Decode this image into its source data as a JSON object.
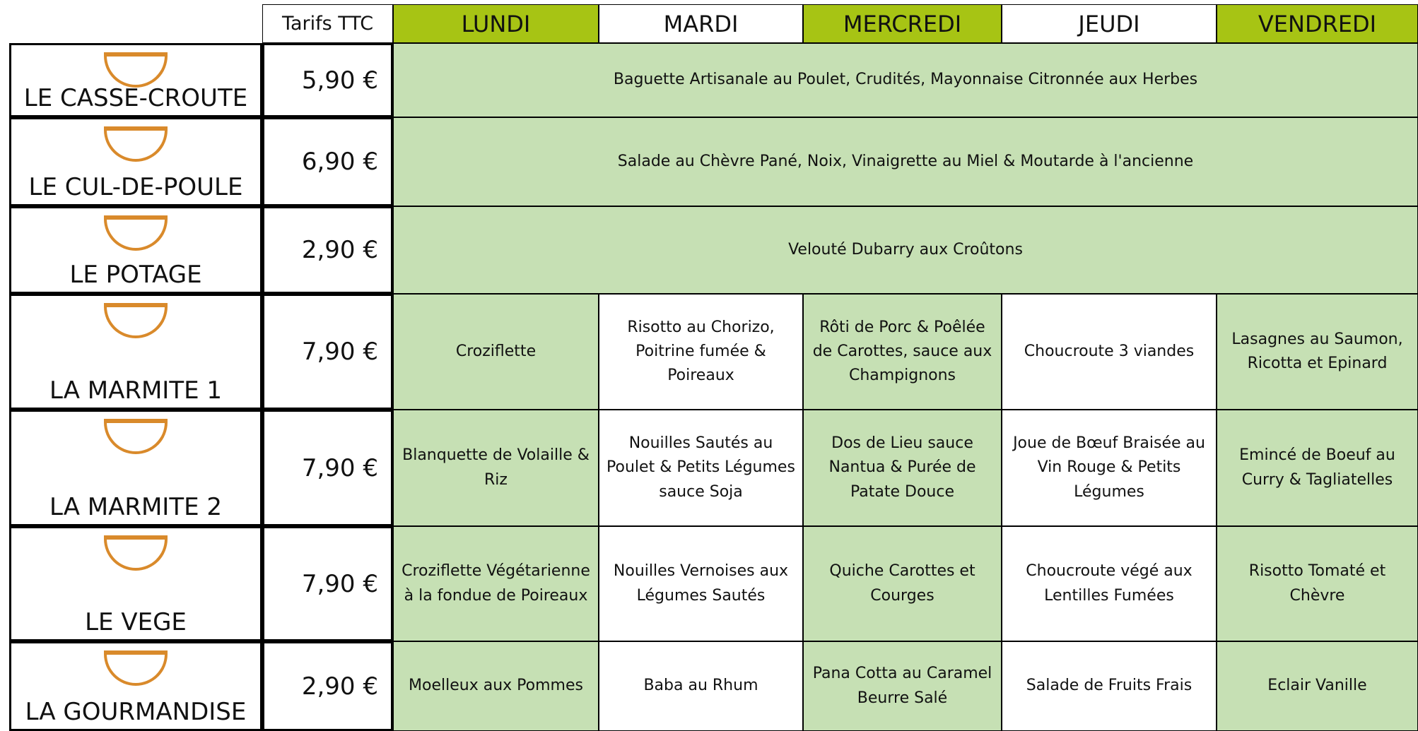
{
  "header": {
    "price_label": "Tarifs TTC",
    "days": [
      "LUNDI",
      "MARDI",
      "MERCREDI",
      "JEUDI",
      "VENDREDI"
    ]
  },
  "rows": [
    {
      "name": "LE CASSE-CROUTE",
      "price": "5,90 €",
      "dishes": [
        "Baguette Artisanale au Poulet, Crudités, Mayonnaise Citronnée aux Herbes"
      ]
    },
    {
      "name": "LE CUL-DE-POULE",
      "price": "6,90 €",
      "dishes": [
        "Salade au Chèvre Pané, Noix, Vinaigrette au Miel & Moutarde à l'ancienne"
      ]
    },
    {
      "name": "LE POTAGE",
      "price": "2,90 €",
      "dishes": [
        "Velouté Dubarry aux Croûtons"
      ]
    },
    {
      "name": "LA MARMITE 1",
      "price": "7,90 €",
      "dishes": [
        "Croziflette",
        "Risotto au Chorizo, Poitrine fumée & Poireaux",
        "Rôti de Porc & Poêlée de Carottes, sauce aux Champignons",
        "Choucroute 3 viandes",
        "Lasagnes au Saumon, Ricotta et Epinard"
      ]
    },
    {
      "name": "LA MARMITE 2",
      "price": "7,90 €",
      "dishes": [
        "Blanquette de Volaille & Riz",
        "Nouilles Sautés au Poulet & Petits Légumes sauce Soja",
        "Dos de Lieu sauce Nantua & Purée de Patate Douce",
        "Joue de Bœuf Braisée au Vin Rouge & Petits Légumes",
        "Emincé de Boeuf au Curry & Tagliatelles"
      ]
    },
    {
      "name": "LE VEGE",
      "price": "7,90 €",
      "dishes": [
        "Croziflette Végétarienne à la fondue de Poireaux",
        "Nouilles Vernoises aux Légumes Sautés",
        "Quiche Carottes et Courges",
        "Choucroute végé aux Lentilles Fumées",
        "Risotto Tomaté et Chèvre"
      ]
    },
    {
      "name": "LA GOURMANDISE",
      "price": "2,90 €",
      "dishes": [
        "Moelleux aux Pommes",
        "Baba au Rhum",
        "Pana Cotta au Caramel Beurre Salé",
        "Salade de Fruits Frais",
        "Eclair Vanille"
      ]
    }
  ]
}
